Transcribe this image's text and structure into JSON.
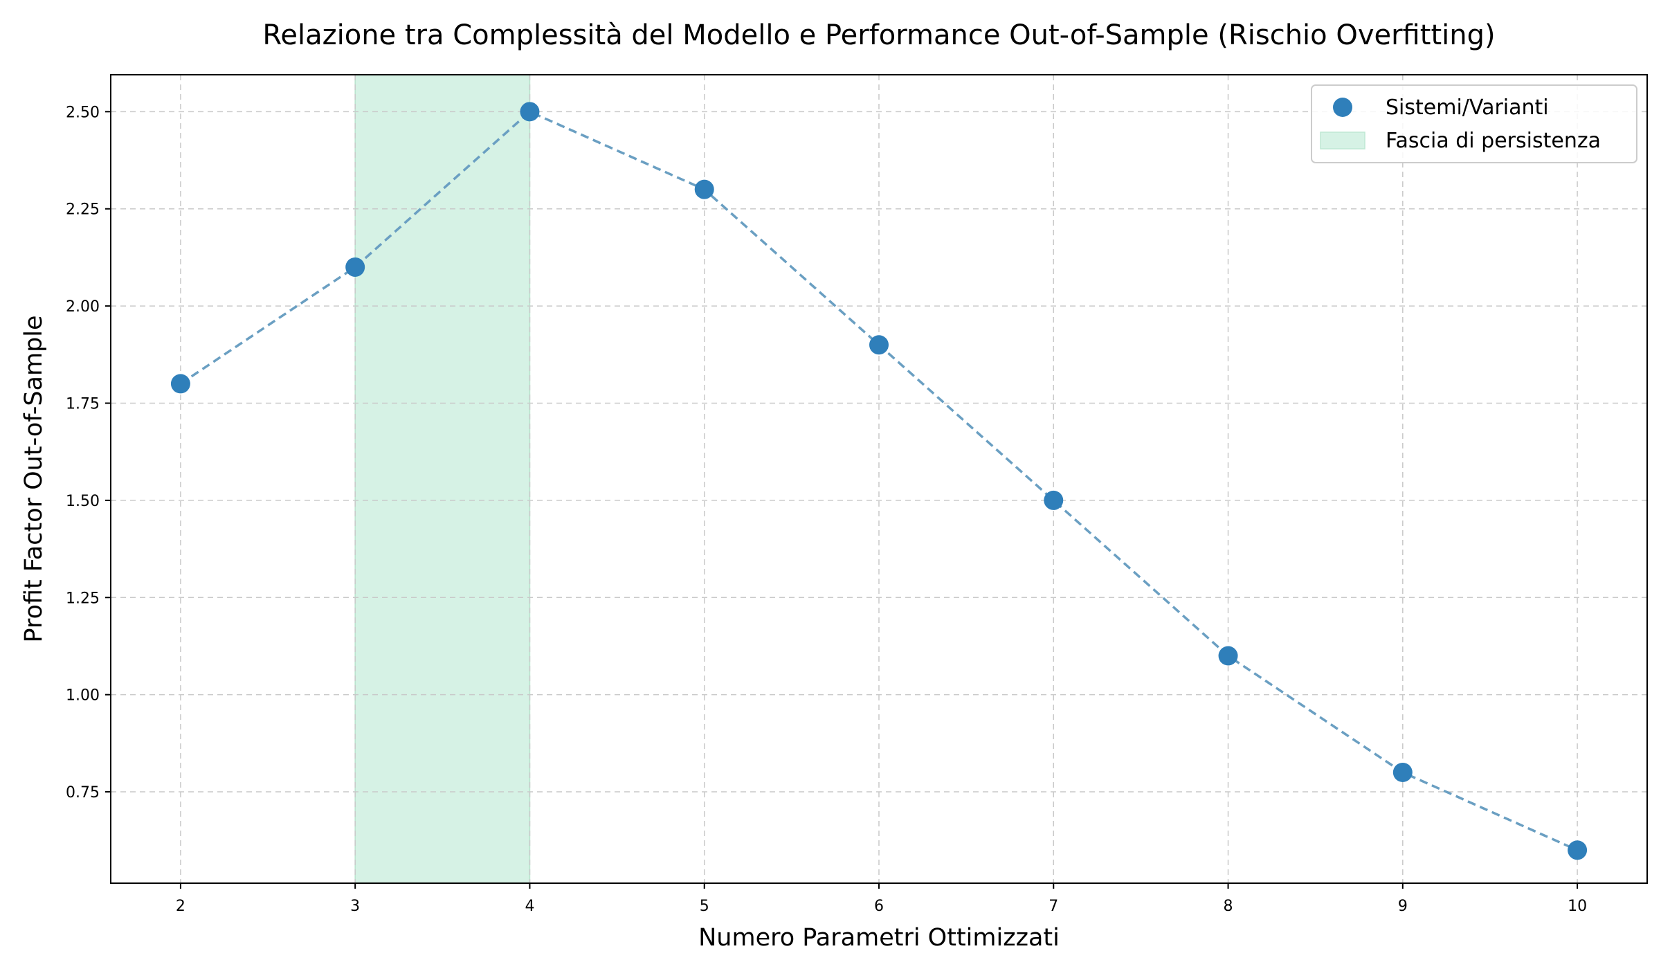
{
  "chart_data": {
    "type": "scatter",
    "title": "Relazione tra Complessità del Modello e Performance Out-of-Sample (Rischio Overfitting)",
    "xlabel": "Numero Parametri Ottimizzati",
    "ylabel": "Profit Factor Out-of-Sample",
    "xlim": [
      1.6,
      10.4
    ],
    "ylim": [
      0.515,
      2.595
    ],
    "x_ticks": [
      2,
      3,
      4,
      5,
      6,
      7,
      8,
      9,
      10
    ],
    "y_ticks": [
      0.75,
      1.0,
      1.25,
      1.5,
      1.75,
      2.0,
      2.25,
      2.5
    ],
    "y_tick_labels": [
      "0.75",
      "1.00",
      "1.25",
      "1.50",
      "1.75",
      "2.00",
      "2.25",
      "2.50"
    ],
    "grid": true,
    "legend_position": "top-right",
    "series": [
      {
        "name": "Sistemi/Varianti",
        "x": [
          2,
          3,
          4,
          5,
          6,
          7,
          8,
          9,
          10
        ],
        "y": [
          1.8,
          2.1,
          2.5,
          2.3,
          1.9,
          1.5,
          1.1,
          0.8,
          0.6
        ],
        "color": "#2f7fba",
        "line_color": "#6a9fc2",
        "line_style": "dashed"
      }
    ],
    "shaded_band": {
      "name": "Fascia di persistenza",
      "x_range": [
        3,
        4
      ],
      "color": "#d6f2e5"
    }
  }
}
